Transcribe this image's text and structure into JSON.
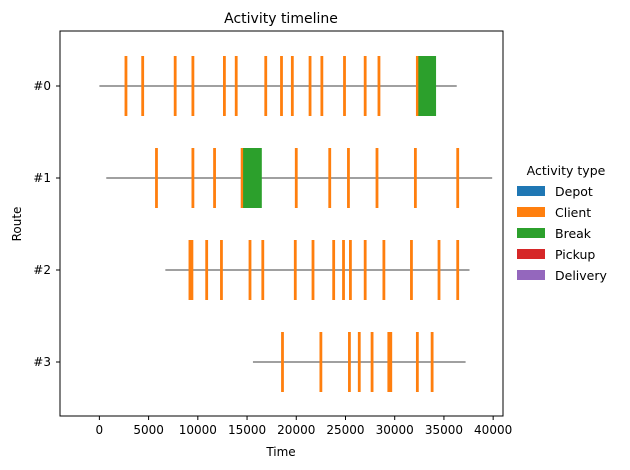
{
  "chart_data": {
    "type": "timeline",
    "title": "Activity timeline",
    "xlabel": "Time",
    "ylabel": "Route",
    "xlim": [
      -4000,
      41000
    ],
    "x_ticks": [
      0,
      5000,
      10000,
      15000,
      20000,
      25000,
      30000,
      35000,
      40000
    ],
    "legend": {
      "title": "Activity type",
      "placement": "right",
      "entries": [
        {
          "name": "Depot",
          "color": "#1f77b4"
        },
        {
          "name": "Client",
          "color": "#ff7f0e"
        },
        {
          "name": "Break",
          "color": "#2ca02c"
        },
        {
          "name": "Pickup",
          "color": "#d62728"
        },
        {
          "name": "Delivery",
          "color": "#9467bd"
        }
      ]
    },
    "route_line_color": "#808080",
    "routes": [
      {
        "label": "#0",
        "start": 0,
        "end": 36300,
        "client_times": [
          2700,
          4400,
          7700,
          9500,
          12700,
          13900,
          16900,
          18500,
          19600,
          21400,
          22600,
          24900,
          27000,
          28400,
          32300
        ],
        "breaks": [
          {
            "start": 32400,
            "end": 34200
          }
        ]
      },
      {
        "label": "#1",
        "start": 700,
        "end": 39900,
        "client_times": [
          5800,
          9500,
          11700,
          14500,
          20000,
          23400,
          25300,
          28200,
          32100,
          36400
        ],
        "breaks": [
          {
            "start": 14600,
            "end": 16500
          }
        ]
      },
      {
        "label": "#2",
        "start": 6700,
        "end": 37600,
        "client_times": [
          9200,
          9400,
          10900,
          12400,
          15300,
          16600,
          19900,
          21700,
          23800,
          24800,
          25500,
          27000,
          28900,
          31700,
          34500,
          36400
        ],
        "breaks": []
      },
      {
        "label": "#3",
        "start": 15600,
        "end": 37200,
        "client_times": [
          18600,
          22500,
          25400,
          26400,
          27700,
          29400,
          29600,
          32300,
          33800
        ],
        "breaks": []
      }
    ]
  }
}
